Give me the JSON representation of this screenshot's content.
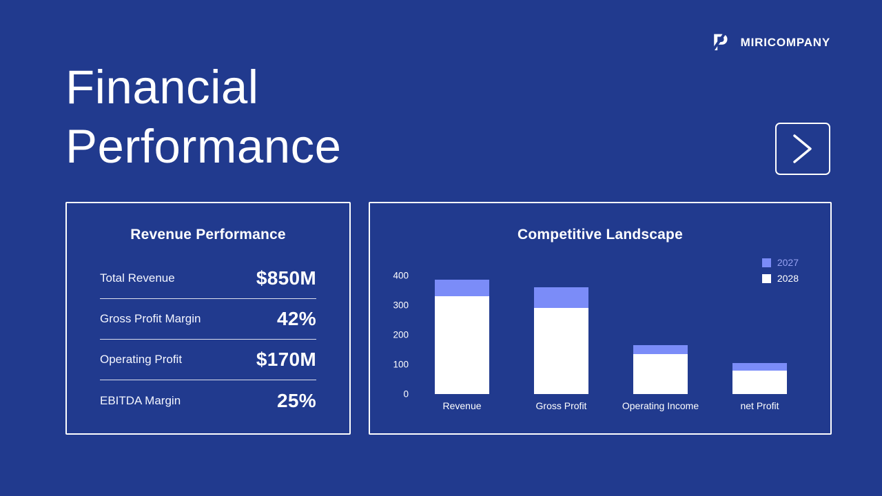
{
  "brand": {
    "name": "MIRICOMPANY",
    "logo_glyph": "P"
  },
  "page_title": {
    "line1": "Financial",
    "line2": "Performance"
  },
  "revenue_card": {
    "title": "Revenue Performance",
    "rows": [
      {
        "label": "Total Revenue",
        "value": "$850M"
      },
      {
        "label": "Gross Profit Margin",
        "value": "42%"
      },
      {
        "label": "Operating Profit",
        "value": "$170M"
      },
      {
        "label": "EBITDA Margin",
        "value": "25%"
      }
    ]
  },
  "chart_card": {
    "title": "Competitive Landscape"
  },
  "chart_data": {
    "type": "bar",
    "stacked": true,
    "title": "Competitive Landscape",
    "categories": [
      "Revenue",
      "Gross Profit",
      "Operating Income",
      "net Profit"
    ],
    "series": [
      {
        "name": "2027",
        "color": "#7b8cf8",
        "label_color": "#96a2f2",
        "values": [
          55,
          70,
          30,
          25
        ]
      },
      {
        "name": "2028",
        "color": "#ffffff",
        "label_color": "#ffffff",
        "values": [
          330,
          290,
          135,
          80
        ]
      }
    ],
    "ylim": [
      0,
      400
    ],
    "yticks": [
      0,
      100,
      200,
      300,
      400
    ],
    "legend_position": "top-right",
    "grid": false,
    "xlabel": "",
    "ylabel": ""
  },
  "colors": {
    "background": "#213a8e",
    "accent": "#7b8cf8",
    "card_border": "#ffffff"
  }
}
